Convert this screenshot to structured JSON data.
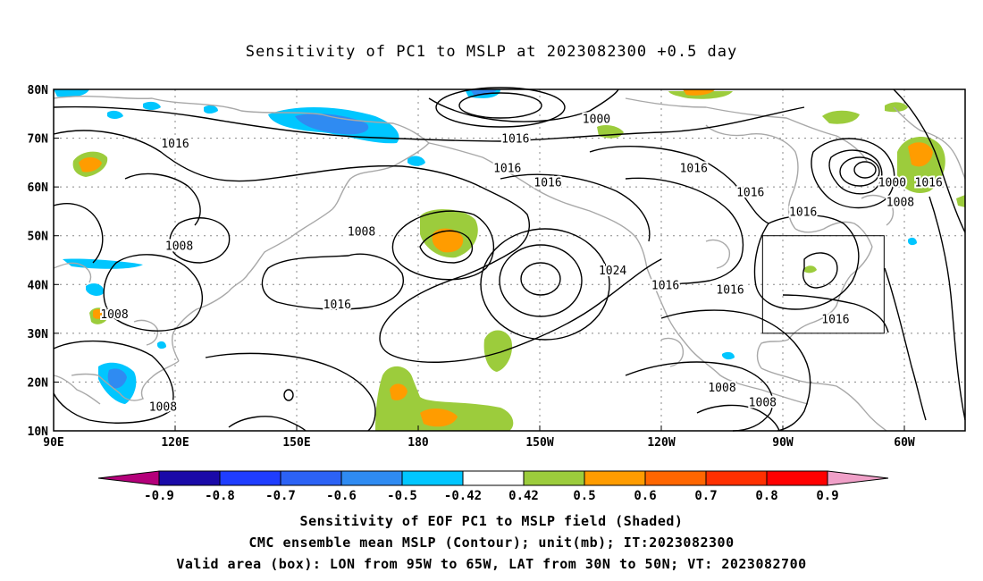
{
  "title": "Sensitivity of PC1 to MSLP at 2023082300 +0.5 day",
  "map": {
    "lon_labels": [
      "90E",
      "120E",
      "150E",
      "180",
      "150W",
      "120W",
      "90W",
      "60W"
    ],
    "lat_labels": [
      "80N",
      "70N",
      "60N",
      "50N",
      "40N",
      "30N",
      "20N",
      "10N"
    ],
    "lon_range_deg_east": [
      90,
      315
    ],
    "lat_range_deg": [
      10,
      80
    ],
    "gridlines": "dotted",
    "valid_box": {
      "lon_w": -95,
      "lon_e": -65,
      "lat_s": 30,
      "lat_n": 50
    },
    "contour_labels": [
      {
        "text": "1000",
        "lon": 224,
        "lat": 74
      },
      {
        "text": "1016",
        "lon": 204,
        "lat": 70
      },
      {
        "text": "1016",
        "lon": 120,
        "lat": 69
      },
      {
        "text": "1016",
        "lon": 202,
        "lat": 64
      },
      {
        "text": "1016",
        "lon": 212,
        "lat": 61
      },
      {
        "text": "1016",
        "lon": 248,
        "lat": 64
      },
      {
        "text": "1016",
        "lon": 262,
        "lat": 59
      },
      {
        "text": "1016",
        "lon": 275,
        "lat": 55
      },
      {
        "text": "1000",
        "lon": 297,
        "lat": 61
      },
      {
        "text": "1008",
        "lon": 299,
        "lat": 57
      },
      {
        "text": "1016",
        "lon": 306,
        "lat": 61
      },
      {
        "text": "1008",
        "lon": 166,
        "lat": 51
      },
      {
        "text": "1008",
        "lon": 121,
        "lat": 48
      },
      {
        "text": "1024",
        "lon": 228,
        "lat": 43
      },
      {
        "text": "1016",
        "lon": 160,
        "lat": 36
      },
      {
        "text": "1016",
        "lon": 241,
        "lat": 40
      },
      {
        "text": "1016",
        "lon": 257,
        "lat": 39
      },
      {
        "text": "1016",
        "lon": 283,
        "lat": 33
      },
      {
        "text": "1008",
        "lon": 105,
        "lat": 34
      },
      {
        "text": "1008",
        "lon": 117,
        "lat": 15
      },
      {
        "text": "1008",
        "lon": 255,
        "lat": 19
      },
      {
        "text": "1008",
        "lon": 265,
        "lat": 16
      }
    ],
    "colors": {
      "contour": "#000000",
      "coast": "#a8a8a8",
      "grid": "#888888"
    }
  },
  "colorbar": {
    "labels": [
      "-0.9",
      "-0.8",
      "-0.7",
      "-0.6",
      "-0.5",
      "-0.42",
      "0.42",
      "0.5",
      "0.6",
      "0.7",
      "0.8",
      "0.9"
    ],
    "colors": [
      "#b4007a",
      "#1a0aa8",
      "#1f3dff",
      "#2c62f5",
      "#2f8bf2",
      "#00c6ff",
      "#ffffff",
      "#9ccc3c",
      "#ff9c00",
      "#ff6600",
      "#ff3000",
      "#ff0000",
      "#f0a0c8"
    ]
  },
  "captions": [
    "Sensitivity of EOF PC1 to MSLP field (Shaded)",
    "CMC ensemble mean MSLP (Contour); unit(mb); IT:2023082300",
    "Valid area (box): LON from 95W to 65W, LAT from 30N to 50N; VT: 2023082700"
  ]
}
